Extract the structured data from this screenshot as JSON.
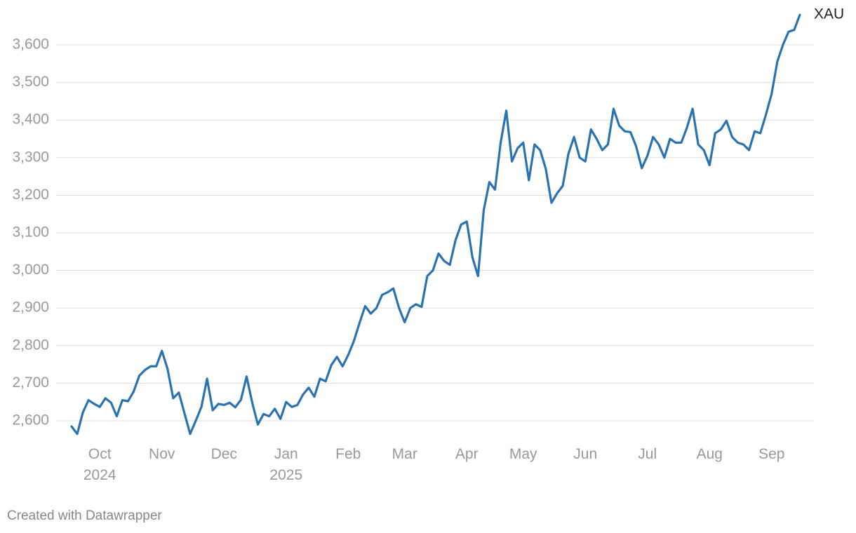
{
  "chart_data": {
    "type": "line",
    "categories": [
      null,
      null,
      null,
      null,
      null,
      "Oct\n2024",
      null,
      null,
      null,
      null,
      null,
      null,
      null,
      null,
      null,
      null,
      "Nov",
      null,
      null,
      null,
      null,
      null,
      null,
      null,
      null,
      null,
      null,
      "Dec",
      null,
      null,
      null,
      null,
      null,
      null,
      null,
      null,
      null,
      null,
      "Jan\n2025",
      null,
      null,
      null,
      null,
      null,
      null,
      null,
      null,
      null,
      null,
      "Feb",
      null,
      null,
      null,
      null,
      null,
      null,
      null,
      null,
      null,
      "Mar",
      null,
      null,
      null,
      null,
      null,
      null,
      null,
      null,
      null,
      null,
      "Apr",
      null,
      null,
      null,
      null,
      null,
      null,
      null,
      null,
      null,
      "May",
      null,
      null,
      null,
      null,
      null,
      null,
      null,
      null,
      null,
      null,
      "Jun",
      null,
      null,
      null,
      null,
      null,
      null,
      null,
      null,
      null,
      null,
      "Jul",
      null,
      null,
      null,
      null,
      null,
      null,
      null,
      null,
      null,
      null,
      "Aug",
      null,
      null,
      null,
      null,
      null,
      null,
      null,
      null,
      null,
      null,
      "Sep",
      null,
      null,
      null,
      null,
      null
    ],
    "series": [
      {
        "name": "XAU",
        "color": "#2a72b0",
        "values": [
          2585,
          2565,
          2622,
          2655,
          2645,
          2637,
          2660,
          2648,
          2612,
          2655,
          2652,
          2678,
          2720,
          2735,
          2745,
          2745,
          2786,
          2738,
          2660,
          2675,
          2620,
          2565,
          2600,
          2637,
          2712,
          2628,
          2645,
          2642,
          2648,
          2636,
          2656,
          2718,
          2648,
          2590,
          2618,
          2612,
          2632,
          2605,
          2650,
          2637,
          2642,
          2670,
          2688,
          2664,
          2712,
          2705,
          2748,
          2770,
          2745,
          2775,
          2812,
          2860,
          2905,
          2885,
          2900,
          2935,
          2942,
          2952,
          2900,
          2862,
          2900,
          2910,
          2903,
          2985,
          3000,
          3045,
          3025,
          3015,
          3080,
          3122,
          3130,
          3035,
          2985,
          3160,
          3235,
          3215,
          3340,
          3425,
          3290,
          3325,
          3340,
          3240,
          3335,
          3320,
          3270,
          3180,
          3205,
          3225,
          3310,
          3355,
          3300,
          3290,
          3375,
          3350,
          3320,
          3335,
          3430,
          3385,
          3370,
          3368,
          3330,
          3272,
          3305,
          3355,
          3335,
          3300,
          3350,
          3340,
          3340,
          3380,
          3430,
          3335,
          3320,
          3280,
          3365,
          3375,
          3398,
          3355,
          3340,
          3335,
          3320,
          3370,
          3365,
          3415,
          3470,
          3555,
          3600,
          3635,
          3640,
          3680
        ]
      }
    ],
    "ylim": [
      2560,
      3700
    ],
    "yticks": [
      {
        "value": 2600,
        "label": "2,600"
      },
      {
        "value": 2700,
        "label": "2,700"
      },
      {
        "value": 2800,
        "label": "2,800"
      },
      {
        "value": 2900,
        "label": "2,900"
      },
      {
        "value": 3000,
        "label": "3,000"
      },
      {
        "value": 3100,
        "label": "3,100"
      },
      {
        "value": 3200,
        "label": "3,200"
      },
      {
        "value": 3300,
        "label": "3,300"
      },
      {
        "value": 3400,
        "label": "3,400"
      },
      {
        "value": 3500,
        "label": "3,500"
      },
      {
        "value": 3600,
        "label": "3,600"
      }
    ],
    "grid": true,
    "credit": "Created with Datawrapper"
  }
}
